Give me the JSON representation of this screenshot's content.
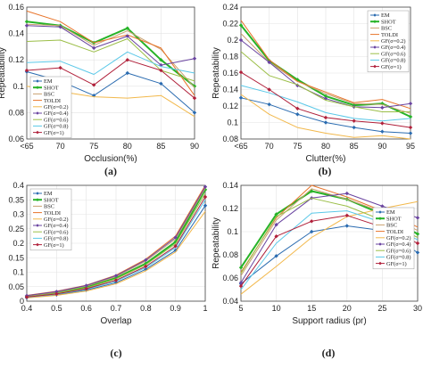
{
  "styles": {
    "EM": {
      "color": "#2a6bb0",
      "marker": "diamond",
      "width": 1.0
    },
    "SHOT": {
      "color": "#27b327",
      "marker": "diamond",
      "width": 2.0
    },
    "BSC": {
      "color": "#c8a070",
      "marker": "none",
      "width": 1.0
    },
    "TOLDI": {
      "color": "#e8742a",
      "marker": "none",
      "width": 1.0
    },
    "GF02": {
      "color": "#f2b84b",
      "marker": "none",
      "width": 1.0
    },
    "GF04": {
      "color": "#6a44a0",
      "marker": "diamond",
      "width": 1.0
    },
    "GF06": {
      "color": "#9bbe47",
      "marker": "none",
      "width": 1.0
    },
    "GF08": {
      "color": "#5ac8e8",
      "marker": "none",
      "width": 1.0
    },
    "GF1": {
      "color": "#b0203a",
      "marker": "diamond",
      "width": 1.0
    }
  },
  "legend_labels": [
    "EM",
    "SHOT",
    "BSC",
    "TOLDI",
    "GF(σ=0.2)",
    "GF(σ=0.4)",
    "GF(σ=0.6)",
    "GF(σ=0.8)",
    "GF(σ=1)"
  ],
  "chart_data": [
    {
      "type": "line",
      "caption": "(a)",
      "xlabel": "Occlusion(%)",
      "ylabel": "Repeatability",
      "categories": [
        "<65",
        "70",
        "75",
        "80",
        "85",
        "90"
      ],
      "yticks": [
        "0.06",
        "0.08",
        "0.1",
        "0.12",
        "0.14",
        "0.16"
      ],
      "ylim": [
        0.06,
        0.16
      ],
      "legend": "lower-left",
      "series": [
        {
          "key": "EM",
          "name": "EM",
          "values": [
            0.111,
            0.104,
            0.093,
            0.11,
            0.102,
            0.08
          ]
        },
        {
          "key": "SHOT",
          "name": "SHOT",
          "values": [
            0.149,
            0.146,
            0.133,
            0.144,
            0.12,
            0.1
          ]
        },
        {
          "key": "BSC",
          "name": "BSC",
          "values": [
            0.147,
            0.146,
            0.131,
            0.142,
            0.128,
            0.099
          ]
        },
        {
          "key": "TOLDI",
          "name": "TOLDI",
          "values": [
            0.157,
            0.149,
            0.133,
            0.139,
            0.129,
            0.093
          ]
        },
        {
          "key": "GF02",
          "name": "GF(σ=0.2)",
          "values": [
            0.1,
            0.096,
            0.092,
            0.091,
            0.093,
            0.077
          ]
        },
        {
          "key": "GF04",
          "name": "GF(σ=0.4)",
          "values": [
            0.146,
            0.145,
            0.129,
            0.138,
            0.116,
            0.121
          ]
        },
        {
          "key": "GF06",
          "name": "GF(σ=0.6)",
          "values": [
            0.134,
            0.135,
            0.126,
            0.136,
            0.112,
            0.104
          ]
        },
        {
          "key": "GF08",
          "name": "GF(σ=0.8)",
          "values": [
            0.118,
            0.119,
            0.109,
            0.126,
            0.115,
            0.11
          ]
        },
        {
          "key": "GF1",
          "name": "GF(σ=1)",
          "values": [
            0.112,
            0.114,
            0.101,
            0.12,
            0.112,
            0.091
          ]
        }
      ]
    },
    {
      "type": "line",
      "caption": "(b)",
      "xlabel": "Clutter(%)",
      "ylabel": "Repeatability",
      "categories": [
        "<65",
        "70",
        "75",
        "80",
        "85",
        "90",
        "95"
      ],
      "yticks": [
        "0.08",
        "0.1",
        "0.12",
        "0.14",
        "0.16",
        "0.18",
        "0.2",
        "0.22",
        "0.24"
      ],
      "ylim": [
        0.08,
        0.24
      ],
      "legend": "top-right",
      "series": [
        {
          "key": "EM",
          "name": "EM",
          "values": [
            0.13,
            0.122,
            0.11,
            0.1,
            0.094,
            0.089,
            0.087
          ]
        },
        {
          "key": "SHOT",
          "name": "SHOT",
          "values": [
            0.218,
            0.175,
            0.152,
            0.132,
            0.121,
            0.123,
            0.107
          ]
        },
        {
          "key": "BSC",
          "name": "BSC",
          "values": [
            0.208,
            0.173,
            0.15,
            0.135,
            0.123,
            0.122,
            0.111
          ]
        },
        {
          "key": "TOLDI",
          "name": "TOLDI",
          "values": [
            0.224,
            0.176,
            0.15,
            0.137,
            0.124,
            0.128,
            0.117
          ]
        },
        {
          "key": "GF02",
          "name": "GF(σ=0.2)",
          "values": [
            0.134,
            0.11,
            0.094,
            0.087,
            0.082,
            0.084,
            0.08
          ]
        },
        {
          "key": "GF04",
          "name": "GF(σ=0.4)",
          "values": [
            0.2,
            0.173,
            0.145,
            0.129,
            0.119,
            0.118,
            0.123
          ]
        },
        {
          "key": "GF06",
          "name": "GF(σ=0.6)",
          "values": [
            0.186,
            0.157,
            0.146,
            0.127,
            0.119,
            0.113,
            0.113
          ]
        },
        {
          "key": "GF08",
          "name": "GF(σ=0.8)",
          "values": [
            0.145,
            0.136,
            0.125,
            0.112,
            0.105,
            0.102,
            0.105
          ]
        },
        {
          "key": "GF1",
          "name": "GF(σ=1)",
          "values": [
            0.161,
            0.14,
            0.117,
            0.106,
            0.102,
            0.099,
            0.094
          ]
        }
      ]
    },
    {
      "type": "line",
      "caption": "(c)",
      "xlabel": "Overlap",
      "ylabel": "",
      "xticks": [
        "0.4",
        "0.5",
        "0.6",
        "0.7",
        "0.8",
        "0.9",
        "1"
      ],
      "xlim": [
        0.4,
        1.0
      ],
      "yticks": [
        "0",
        "0.05",
        "0.1",
        "0.15",
        "0.2",
        "0.25",
        "0.3",
        "0.35",
        "0.4"
      ],
      "ylim": [
        0,
        0.4
      ],
      "legend": "top-left",
      "series": [
        {
          "key": "EM",
          "name": "EM",
          "x": [
            0.4,
            0.5,
            0.6,
            0.7,
            0.8,
            0.9,
            1.0
          ],
          "values": [
            0.012,
            0.022,
            0.038,
            0.064,
            0.11,
            0.175,
            0.33
          ]
        },
        {
          "key": "SHOT",
          "name": "SHOT",
          "x": [
            0.4,
            0.5,
            0.6,
            0.7,
            0.8,
            0.9,
            1.0
          ],
          "values": [
            0.016,
            0.028,
            0.048,
            0.08,
            0.13,
            0.205,
            0.385
          ]
        },
        {
          "key": "BSC",
          "name": "BSC",
          "x": [
            0.4,
            0.5,
            0.6,
            0.7,
            0.8,
            0.9,
            1.0
          ],
          "values": [
            0.018,
            0.031,
            0.052,
            0.085,
            0.138,
            0.215,
            0.39
          ]
        },
        {
          "key": "TOLDI",
          "name": "TOLDI",
          "x": [
            0.4,
            0.5,
            0.6,
            0.7,
            0.8,
            0.9,
            1.0
          ],
          "values": [
            0.02,
            0.034,
            0.055,
            0.09,
            0.145,
            0.225,
            0.4
          ]
        },
        {
          "key": "GF02",
          "name": "GF(σ=0.2)",
          "x": [
            0.4,
            0.5,
            0.6,
            0.7,
            0.8,
            0.9,
            1.0
          ],
          "values": [
            0.011,
            0.02,
            0.035,
            0.06,
            0.105,
            0.17,
            0.31
          ]
        },
        {
          "key": "GF04",
          "name": "GF(σ=0.4)",
          "x": [
            0.4,
            0.5,
            0.6,
            0.7,
            0.8,
            0.9,
            1.0
          ],
          "values": [
            0.019,
            0.033,
            0.054,
            0.088,
            0.142,
            0.22,
            0.395
          ]
        },
        {
          "key": "GF06",
          "name": "GF(σ=0.6)",
          "x": [
            0.4,
            0.5,
            0.6,
            0.7,
            0.8,
            0.9,
            1.0
          ],
          "values": [
            0.015,
            0.027,
            0.046,
            0.077,
            0.126,
            0.198,
            0.372
          ]
        },
        {
          "key": "GF08",
          "name": "GF(σ=0.8)",
          "x": [
            0.4,
            0.5,
            0.6,
            0.7,
            0.8,
            0.9,
            1.0
          ],
          "values": [
            0.013,
            0.024,
            0.041,
            0.069,
            0.116,
            0.185,
            0.35
          ]
        },
        {
          "key": "GF1",
          "name": "GF(σ=1)",
          "x": [
            0.4,
            0.5,
            0.6,
            0.7,
            0.8,
            0.9,
            1.0
          ],
          "values": [
            0.014,
            0.025,
            0.043,
            0.072,
            0.12,
            0.19,
            0.36
          ]
        }
      ]
    },
    {
      "type": "line",
      "caption": "(d)",
      "xlabel": "Support radius (pr)",
      "ylabel": "Repeatability",
      "xticks": [
        "5",
        "10",
        "15",
        "20",
        "25",
        "30"
      ],
      "xlim": [
        5,
        30
      ],
      "yticks": [
        "0.04",
        "0.06",
        "0.08",
        "0.1",
        "0.12",
        "0.14"
      ],
      "ylim": [
        0.04,
        0.14
      ],
      "legend": "right",
      "series": [
        {
          "key": "EM",
          "name": "EM",
          "x": [
            5,
            10,
            15,
            20,
            25,
            30
          ],
          "values": [
            0.055,
            0.079,
            0.1,
            0.105,
            0.101,
            0.082
          ]
        },
        {
          "key": "SHOT",
          "name": "SHOT",
          "x": [
            5,
            10,
            15,
            20,
            25,
            30
          ],
          "values": [
            0.069,
            0.115,
            0.135,
            0.128,
            0.115,
            0.098
          ]
        },
        {
          "key": "BSC",
          "name": "BSC",
          "x": [
            5,
            10,
            15,
            20,
            25,
            30
          ],
          "values": [
            0.062,
            0.11,
            0.137,
            0.128,
            0.117,
            0.101
          ]
        },
        {
          "key": "TOLDI",
          "name": "TOLDI",
          "x": [
            5,
            10,
            15,
            20,
            25,
            30
          ],
          "values": [
            0.065,
            0.112,
            0.14,
            0.13,
            0.118,
            0.104
          ]
        },
        {
          "key": "GF02",
          "name": "GF(σ=0.2)",
          "x": [
            5,
            10,
            15,
            20,
            25,
            30
          ],
          "values": [
            0.046,
            0.07,
            0.095,
            0.113,
            0.12,
            0.126
          ]
        },
        {
          "key": "GF04",
          "name": "GF(σ=0.4)",
          "x": [
            5,
            10,
            15,
            20,
            25,
            30
          ],
          "values": [
            0.056,
            0.106,
            0.129,
            0.133,
            0.122,
            0.112
          ]
        },
        {
          "key": "GF06",
          "name": "GF(σ=0.6)",
          "x": [
            5,
            10,
            15,
            20,
            25,
            30
          ],
          "values": [
            0.064,
            0.113,
            0.129,
            0.122,
            0.11,
            0.095
          ]
        },
        {
          "key": "GF08",
          "name": "GF(σ=0.8)",
          "x": [
            5,
            10,
            15,
            20,
            25,
            30
          ],
          "values": [
            0.05,
            0.09,
            0.116,
            0.118,
            0.108,
            0.093
          ]
        },
        {
          "key": "GF1",
          "name": "GF(σ=1)",
          "x": [
            5,
            10,
            15,
            20,
            25,
            30
          ],
          "values": [
            0.053,
            0.096,
            0.109,
            0.114,
            0.104,
            0.09
          ]
        }
      ]
    }
  ]
}
